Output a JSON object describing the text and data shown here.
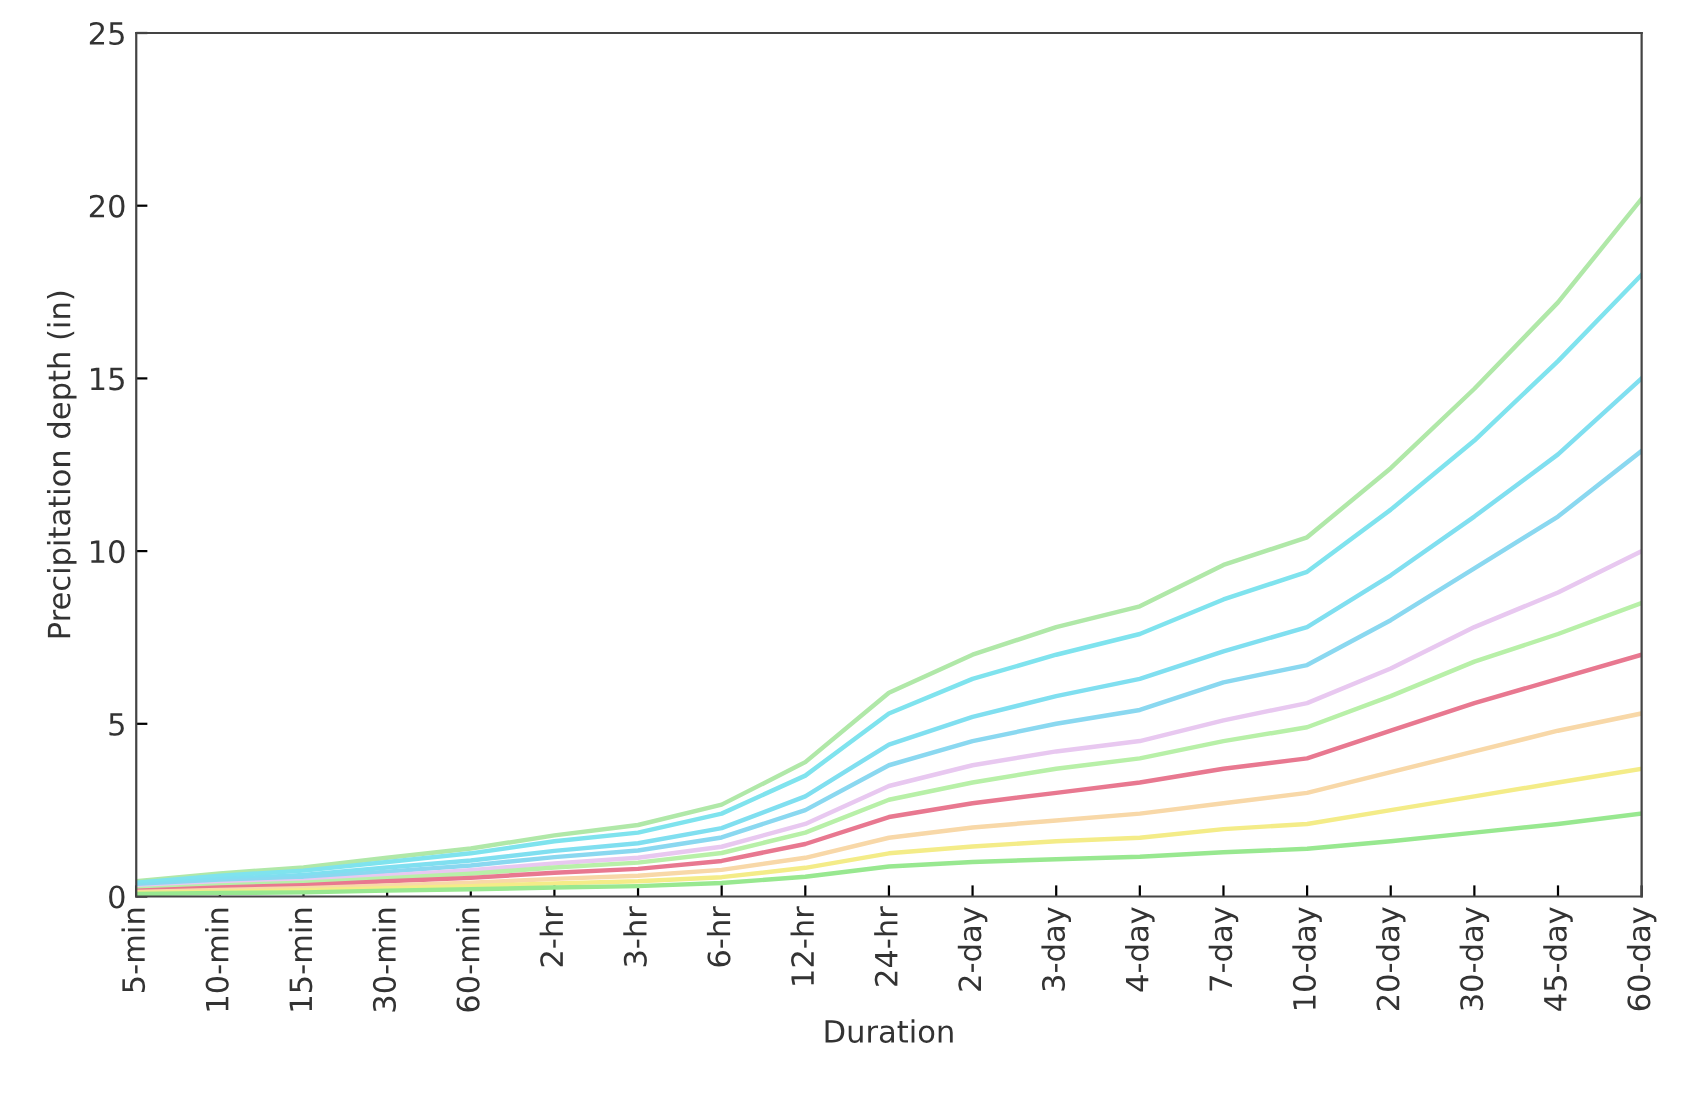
{
  "chart_data": {
    "type": "line",
    "xlabel": "Duration",
    "ylabel": "Precipitation depth (in)",
    "grid": false,
    "marker": "none",
    "line_style": "solid",
    "categories": [
      "5-min",
      "10-min",
      "15-min",
      "30-min",
      "60-min",
      "2-hr",
      "3-hr",
      "6-hr",
      "12-hr",
      "24-hr",
      "2-day",
      "3-day",
      "4-day",
      "7-day",
      "10-day",
      "20-day",
      "30-day",
      "45-day",
      "60-day"
    ],
    "ylim": [
      0,
      25
    ],
    "yticks": [
      0,
      5,
      10,
      15,
      20,
      25
    ],
    "series": [
      {
        "color": "#b0e8a8",
        "values": [
          0.44,
          0.67,
          0.84,
          1.12,
          1.39,
          1.77,
          2.07,
          2.66,
          3.89,
          5.9,
          7.0,
          7.8,
          8.4,
          9.6,
          10.4,
          12.4,
          14.7,
          17.2,
          20.2
        ]
      },
      {
        "color": "#7fe3ee",
        "values": [
          0.4,
          0.6,
          0.75,
          1.0,
          1.25,
          1.6,
          1.85,
          2.4,
          3.5,
          5.3,
          6.3,
          7.0,
          7.6,
          8.6,
          9.4,
          11.2,
          13.2,
          15.5,
          18.0
        ]
      },
      {
        "color": "#80dff0",
        "values": [
          0.33,
          0.5,
          0.62,
          0.84,
          1.04,
          1.32,
          1.54,
          1.98,
          2.9,
          4.4,
          5.2,
          5.8,
          6.3,
          7.1,
          7.8,
          9.3,
          11.0,
          12.8,
          15.0
        ]
      },
      {
        "color": "#8ad8f0",
        "values": [
          0.29,
          0.43,
          0.54,
          0.72,
          0.9,
          1.14,
          1.33,
          1.71,
          2.5,
          3.8,
          4.5,
          5.0,
          5.4,
          6.2,
          6.7,
          8.0,
          9.5,
          11.0,
          12.9
        ]
      },
      {
        "color": "#e8c8f0",
        "values": [
          0.24,
          0.36,
          0.45,
          0.61,
          0.76,
          0.96,
          1.12,
          1.44,
          2.1,
          3.2,
          3.8,
          4.2,
          4.5,
          5.1,
          5.6,
          6.6,
          7.8,
          8.8,
          10.0
        ]
      },
      {
        "color": "#b8f0a8",
        "values": [
          0.21,
          0.32,
          0.4,
          0.53,
          0.66,
          0.84,
          0.98,
          1.26,
          1.85,
          2.8,
          3.3,
          3.7,
          4.0,
          4.5,
          4.9,
          5.8,
          6.8,
          7.6,
          8.5
        ]
      },
      {
        "color": "#e87890",
        "values": [
          0.17,
          0.26,
          0.33,
          0.44,
          0.54,
          0.69,
          0.8,
          1.03,
          1.52,
          2.3,
          2.7,
          3.0,
          3.3,
          3.7,
          4.0,
          4.8,
          5.6,
          6.3,
          7.0
        ]
      },
      {
        "color": "#f8d8a8",
        "values": [
          0.13,
          0.19,
          0.24,
          0.32,
          0.4,
          0.51,
          0.6,
          0.77,
          1.12,
          1.7,
          2.0,
          2.2,
          2.4,
          2.7,
          3.0,
          3.6,
          4.2,
          4.8,
          5.3
        ]
      },
      {
        "color": "#f4ec88",
        "values": [
          0.1,
          0.14,
          0.18,
          0.24,
          0.3,
          0.38,
          0.44,
          0.56,
          0.83,
          1.25,
          1.45,
          1.6,
          1.7,
          1.95,
          2.1,
          2.5,
          2.9,
          3.3,
          3.7
        ]
      },
      {
        "color": "#98e890",
        "values": [
          0.07,
          0.1,
          0.12,
          0.17,
          0.21,
          0.26,
          0.3,
          0.39,
          0.57,
          0.87,
          1.0,
          1.08,
          1.15,
          1.28,
          1.38,
          1.6,
          1.85,
          2.1,
          2.4
        ]
      }
    ]
  }
}
